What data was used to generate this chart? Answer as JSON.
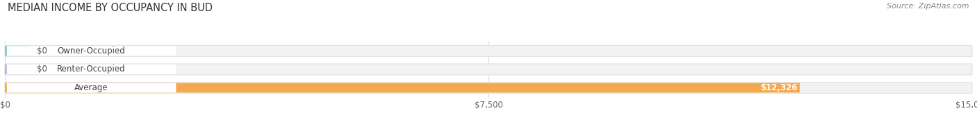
{
  "title": "MEDIAN INCOME BY OCCUPANCY IN BUD",
  "source": "Source: ZipAtlas.com",
  "categories": [
    "Owner-Occupied",
    "Renter-Occupied",
    "Average"
  ],
  "values": [
    0,
    0,
    12326
  ],
  "bar_colors": [
    "#6ecfcf",
    "#c4aee0",
    "#f5a94e"
  ],
  "track_color": "#f2f2f2",
  "track_edge_color": "#e2e2e2",
  "label_bg_color": "#ffffff",
  "xlim": [
    0,
    15000
  ],
  "xticks": [
    0,
    7500,
    15000
  ],
  "xtick_labels": [
    "$0",
    "$7,500",
    "$15,000"
  ],
  "value_labels": [
    "$0",
    "$0",
    "$12,326"
  ],
  "background_color": "#ffffff",
  "title_fontsize": 10.5,
  "source_fontsize": 8,
  "bar_label_fontsize": 8.5,
  "category_fontsize": 8.5,
  "grid_color": "#d8d8d8"
}
